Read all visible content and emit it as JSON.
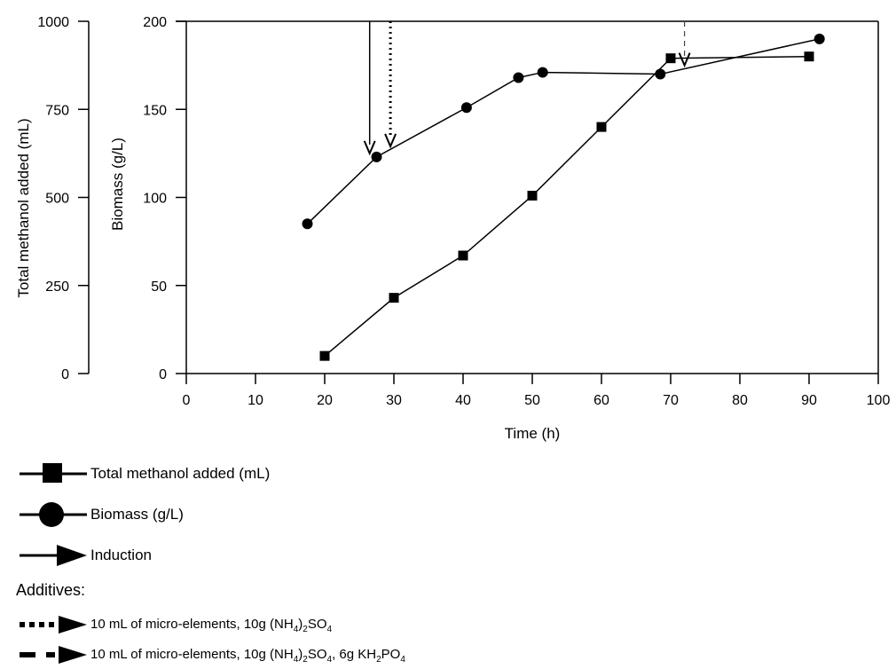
{
  "chart_data": {
    "type": "line",
    "x_axis": {
      "label": "Time (h)",
      "range": [
        0,
        100
      ],
      "ticks": [
        0,
        10,
        20,
        30,
        40,
        50,
        60,
        70,
        80,
        90,
        100
      ]
    },
    "y_axis_left": {
      "label": "Total methanol added (mL)",
      "range": [
        0,
        1000
      ],
      "ticks": [
        0,
        250,
        500,
        750,
        1000
      ]
    },
    "y_axis_right": {
      "label": "Biomass (g/L)",
      "range": [
        0,
        200
      ],
      "ticks": [
        0,
        50,
        100,
        150,
        200
      ]
    },
    "grid": false,
    "series": [
      {
        "name": "Total methanol added (mL)",
        "marker": "square",
        "axis": "Total methanol added (mL)",
        "points": [
          [
            20,
            50
          ],
          [
            30,
            215
          ],
          [
            40,
            335
          ],
          [
            50,
            505
          ],
          [
            60,
            700
          ],
          [
            70,
            895
          ],
          [
            90,
            900
          ]
        ]
      },
      {
        "name": "Biomass (g/L)",
        "marker": "circle",
        "axis": "Biomass (g/L)",
        "points": [
          [
            17.5,
            85
          ],
          [
            27.5,
            123
          ],
          [
            40.5,
            151
          ],
          [
            48,
            168
          ],
          [
            51.5,
            171
          ],
          [
            68.5,
            170
          ],
          [
            91.5,
            190
          ]
        ]
      }
    ],
    "annotations": [
      {
        "type": "arrow",
        "style": "solid",
        "meaning": "Induction",
        "x": 26.5,
        "to_biomass": 123
      },
      {
        "type": "arrow",
        "style": "dotted",
        "meaning": "10 mL of micro-elements, 10g (NH4)2SO4",
        "x": 29.5,
        "to_biomass": 127
      },
      {
        "type": "arrow",
        "style": "dashed",
        "meaning": "10 mL of micro-elements, 10g (NH4)2SO4, 6g KH2PO4",
        "x": 72,
        "to_biomass": 173
      }
    ]
  },
  "legend": {
    "methanol": "Total methanol added (mL)",
    "biomass": "Biomass (g/L)",
    "induction": "Induction",
    "additives_heading": "Additives:",
    "additive1": {
      "text": "10 mL of micro-elements, 10g (NH",
      "sub1": "4",
      "mid1": ")",
      "sub2": "2",
      "tail": "SO",
      "sub3": "4"
    },
    "additive2": {
      "text": "10 mL of micro-elements, 10g (NH",
      "sub1": "4",
      "mid1": ")",
      "sub2": "2",
      "mid2": "SO",
      "sub3": "4",
      "mid3": ", 6g KH",
      "sub4": "2",
      "mid4": "PO",
      "sub5": "4"
    }
  }
}
